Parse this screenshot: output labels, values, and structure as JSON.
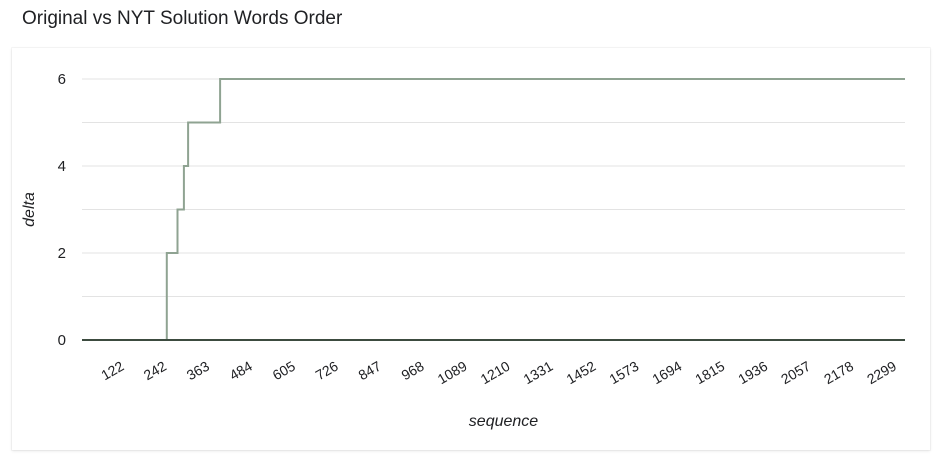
{
  "title": "Original vs NYT Solution Words Order",
  "chart_data": {
    "type": "line",
    "title": "Original vs NYT Solution Words Order",
    "xlabel": "sequence",
    "ylabel": "delta",
    "xlim": [
      1,
      2320
    ],
    "ylim": [
      0,
      6
    ],
    "y_ticks": [
      0,
      2,
      4,
      6
    ],
    "x_ticks": [
      122,
      242,
      363,
      484,
      605,
      726,
      847,
      968,
      1089,
      1210,
      1331,
      1452,
      1573,
      1694,
      1815,
      1936,
      2057,
      2178,
      2299
    ],
    "x_tick_labels": [
      "122",
      "242",
      "363",
      "484",
      "605",
      "726",
      "847",
      "968",
      "1089",
      "1210",
      "1331",
      "1452",
      "1573",
      "1694",
      "1815",
      "1936",
      "2057",
      "2178",
      "2299"
    ],
    "grid": true,
    "legend": "none",
    "step": true,
    "series": [
      {
        "color": "#8fa392",
        "x": [
          1,
          240,
          240,
          270,
          270,
          288,
          288,
          300,
          300,
          390,
          390,
          2320
        ],
        "y": [
          0,
          0,
          2,
          2,
          3,
          3,
          4,
          4,
          5,
          5,
          6,
          6
        ]
      }
    ],
    "baseline_color": "#3c4b3f"
  }
}
